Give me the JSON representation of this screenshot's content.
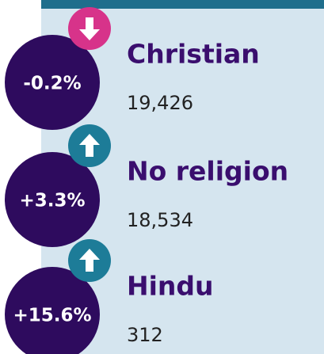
{
  "items": [
    {
      "change": "-0.2%",
      "name": "Christian",
      "count": "19,426",
      "direction": "down"
    },
    {
      "change": "+3.3%",
      "name": "No religion",
      "count": "18,534",
      "direction": "up"
    },
    {
      "change": "+15.6%",
      "name": "Hindu",
      "count": "312",
      "direction": "up"
    }
  ]
}
